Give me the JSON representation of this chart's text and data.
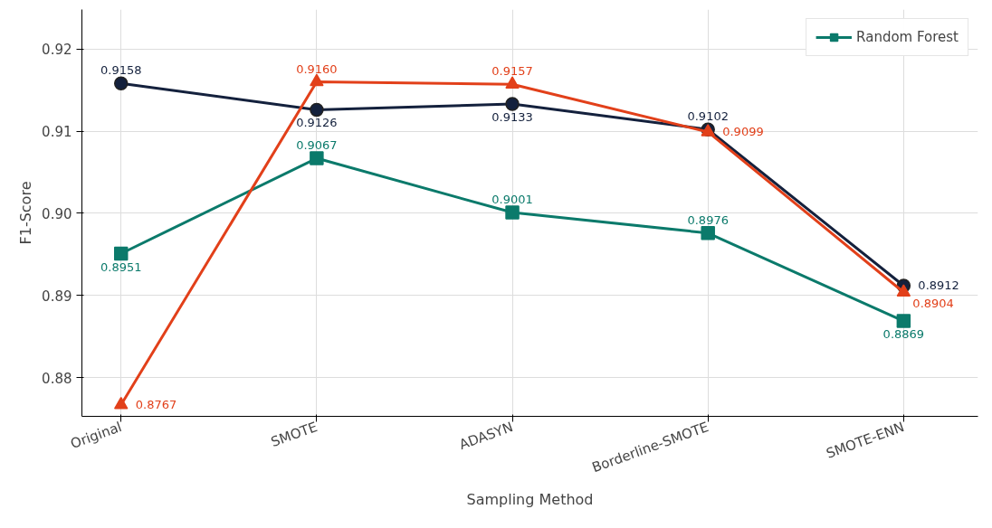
{
  "chart_data": {
    "type": "line",
    "xlabel": "Sampling Method",
    "ylabel": "F1-Score",
    "categories": [
      "Original",
      "SMOTE",
      "ADASYN",
      "Borderline-SMOTE",
      "SMOTE-ENN"
    ],
    "ylim": [
      0.8753,
      0.9248
    ],
    "yticks": [
      {
        "value": 0.88,
        "label": "0.88"
      },
      {
        "value": 0.89,
        "label": "0.89"
      },
      {
        "value": 0.9,
        "label": "0.90"
      },
      {
        "value": 0.91,
        "label": "0.91"
      },
      {
        "value": 0.92,
        "label": "0.92"
      }
    ],
    "series": [
      {
        "color": "#14213d",
        "marker": "circle",
        "values": [
          0.9158,
          0.9126,
          0.9133,
          0.9102,
          0.8912
        ],
        "value_labels": [
          "0.9158",
          "0.9126",
          "0.9133",
          "0.9102",
          "0.8912"
        ]
      },
      {
        "name": "Random Forest",
        "color": "#0b7a6b",
        "marker": "square",
        "values": [
          0.8951,
          0.9067,
          0.9001,
          0.8976,
          0.8869
        ],
        "value_labels": [
          "0.8951",
          "0.9067",
          "0.9001",
          "0.8976",
          "0.8869"
        ]
      },
      {
        "color": "#e2401a",
        "marker": "triangle",
        "values": [
          0.8767,
          0.916,
          0.9157,
          0.9099,
          0.8904
        ],
        "value_labels": [
          "0.8767",
          "0.9160",
          "0.9157",
          "0.9099",
          "0.8904"
        ]
      }
    ],
    "grid": true,
    "legend": "top right"
  }
}
